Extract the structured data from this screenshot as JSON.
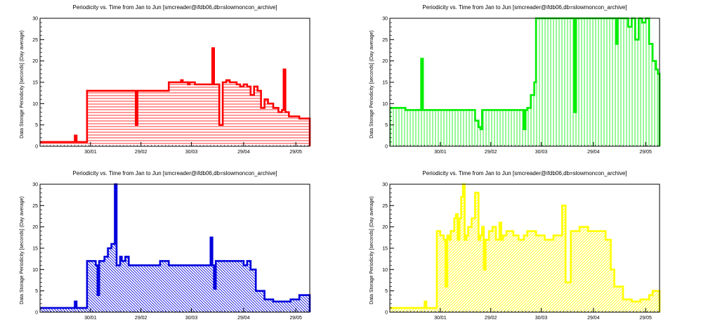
{
  "chart_data": [
    {
      "type": "area",
      "title": "Periodicity vs. Time from Jan to Jun [smcreader@ifdb06,db=slowmoncon_archive]",
      "ylabel": "Data Storage Periodicity [seconds] (Day average)",
      "xlabel": "",
      "x_tick_labels": [
        "30/01",
        "29/02",
        "30/03",
        "29/04",
        "29/05"
      ],
      "y_tick_labels": [
        "0",
        "5",
        "10",
        "15",
        "20",
        "25",
        "30"
      ],
      "xlim": [
        1,
        156
      ],
      "ylim": [
        0,
        30
      ],
      "color": "#ff0000",
      "fill_pattern": "horizontal-hatch",
      "grid": false,
      "series": [
        {
          "x": [
            1,
            10,
            20,
            21,
            22,
            26,
            27,
            28,
            30,
            40,
            50,
            55,
            56,
            57,
            60,
            65,
            70,
            75,
            80,
            82,
            83,
            84,
            86,
            87,
            90,
            95,
            98,
            100,
            101,
            102,
            104,
            106,
            108,
            109,
            110,
            112,
            114,
            116,
            118,
            120,
            122,
            124,
            126,
            128,
            130,
            132,
            135,
            138,
            139,
            140,
            141,
            142,
            143,
            144,
            146,
            148,
            150,
            152,
            153,
            154,
            155,
            156
          ],
          "y": [
            1,
            1,
            1,
            2.5,
            1,
            1,
            1,
            13,
            13,
            13,
            13,
            13,
            5,
            13,
            13,
            13,
            13,
            15,
            15,
            15.5,
            15,
            15,
            14.5,
            15,
            14.5,
            14.5,
            14.5,
            23,
            14.5,
            14.5,
            5,
            15,
            15.5,
            15.5,
            15,
            15,
            14.5,
            14,
            14.5,
            14,
            12,
            14,
            13,
            9,
            11,
            10,
            9,
            8,
            8,
            8.5,
            18,
            8,
            8,
            7,
            7,
            7,
            6.5,
            6.5,
            6.5,
            6.5,
            6.5,
            0
          ]
        }
      ]
    },
    {
      "type": "area",
      "title": "Periodicity vs. Time from Jan to Jun [smcreader@ifdb06,db=slowmoncon_archive]",
      "ylabel": "Data Storage Periodicity [seconds] (Day average)",
      "xlabel": "",
      "x_tick_labels": [
        "30/01",
        "29/02",
        "30/03",
        "29/04",
        "29/05"
      ],
      "y_tick_labels": [
        "0",
        "5",
        "10",
        "15",
        "20",
        "25",
        "30"
      ],
      "xlim": [
        1,
        156
      ],
      "ylim": [
        0,
        30
      ],
      "color": "#00ee00",
      "fill_pattern": "vertical-hatch",
      "grid": false,
      "series": [
        {
          "x": [
            1,
            5,
            10,
            15,
            18,
            19,
            20,
            25,
            30,
            35,
            40,
            45,
            50,
            52,
            53,
            54,
            55,
            60,
            65,
            70,
            75,
            78,
            79,
            80,
            82,
            84,
            85,
            90,
            95,
            100,
            106,
            107,
            108,
            110,
            115,
            120,
            125,
            130,
            131,
            132,
            135,
            138,
            140,
            142,
            144,
            146,
            148,
            150,
            152,
            154,
            155,
            156
          ],
          "y": [
            9,
            9,
            8.5,
            8.5,
            8.5,
            20.5,
            8.5,
            8.5,
            8.5,
            8.5,
            8.5,
            8.5,
            6,
            4.5,
            4,
            8.5,
            8.5,
            8.5,
            8.5,
            8.5,
            8.5,
            4,
            8.5,
            9,
            12,
            15,
            30,
            30,
            30,
            30,
            30,
            8,
            30,
            30,
            30,
            30,
            30,
            30,
            24,
            30,
            30,
            28,
            30,
            25,
            30,
            29,
            30,
            24,
            20,
            18,
            17,
            0
          ]
        }
      ]
    },
    {
      "type": "area",
      "title": "Periodicity vs. Time from Jan to Jun [smcreader@ifdb06,db=slowmoncon_archive]",
      "ylabel": "Data Storage Periodicity [seconds] (Day average)",
      "xlabel": "",
      "x_tick_labels": [
        "30/01",
        "29/02",
        "30/03",
        "29/04",
        "29/05"
      ],
      "y_tick_labels": [
        "0",
        "5",
        "10",
        "15",
        "20",
        "25",
        "30"
      ],
      "xlim": [
        1,
        156
      ],
      "ylim": [
        0,
        30
      ],
      "color": "#0000dd",
      "fill_pattern": "diagonal-hatch-down",
      "grid": false,
      "series": [
        {
          "x": [
            1,
            10,
            15,
            20,
            21,
            22,
            26,
            27,
            28,
            30,
            33,
            34,
            35,
            38,
            40,
            42,
            44,
            45,
            46,
            47,
            48,
            50,
            52,
            55,
            60,
            65,
            70,
            75,
            80,
            85,
            90,
            95,
            98,
            99,
            100,
            101,
            102,
            105,
            110,
            115,
            118,
            120,
            122,
            125,
            130,
            135,
            140,
            145,
            150,
            152,
            155,
            156
          ],
          "y": [
            1,
            1,
            1,
            1,
            2.5,
            1,
            1,
            1,
            12,
            12,
            11,
            4,
            12,
            13,
            15,
            16,
            30,
            11,
            11,
            13,
            12,
            13,
            11,
            11,
            11,
            11,
            12,
            11,
            11,
            11,
            11,
            11,
            11,
            17.5,
            11,
            5.5,
            12,
            12,
            12,
            12,
            11,
            12,
            10,
            5,
            3,
            2.5,
            2.5,
            3,
            4,
            4,
            4,
            0
          ]
        }
      ]
    },
    {
      "type": "area",
      "title": "Periodicity vs. Time from Jan to Jun [smcreader@ifdb06,db=slowmoncon_archive]",
      "ylabel": "Data Storage Periodicity [seconds] (Day average)",
      "xlabel": "",
      "x_tick_labels": [
        "30/01",
        "29/02",
        "30/03",
        "29/04",
        "29/05"
      ],
      "y_tick_labels": [
        "0",
        "5",
        "10",
        "15",
        "20",
        "25",
        "30"
      ],
      "xlim": [
        1,
        156
      ],
      "ylim": [
        0,
        30
      ],
      "color": "#ffff00",
      "fill_pattern": "diagonal-hatch-up",
      "grid": false,
      "series": [
        {
          "x": [
            1,
            10,
            15,
            20,
            21,
            22,
            26,
            27,
            28,
            30,
            32,
            33,
            34,
            35,
            36,
            38,
            39,
            40,
            41,
            42,
            43,
            44,
            45,
            46,
            48,
            50,
            52,
            53,
            54,
            55,
            56,
            58,
            60,
            62,
            64,
            65,
            66,
            68,
            70,
            72,
            75,
            78,
            80,
            85,
            90,
            95,
            100,
            102,
            105,
            108,
            110,
            115,
            120,
            125,
            128,
            130,
            135,
            140,
            145,
            150,
            152,
            155,
            156
          ],
          "y": [
            1,
            1,
            1,
            1,
            2.5,
            1,
            1,
            1,
            19,
            18,
            17,
            6,
            18,
            17,
            19,
            22,
            23,
            17,
            22,
            27,
            30,
            17,
            18,
            20,
            22,
            28,
            17,
            18,
            20,
            10,
            17,
            19,
            20,
            17,
            21,
            17,
            18,
            19,
            19,
            18,
            17,
            18,
            19,
            18,
            17,
            18,
            25,
            7,
            19,
            19,
            20,
            19,
            19,
            17,
            10,
            6,
            3,
            2.5,
            3,
            4,
            5,
            5,
            0
          ]
        }
      ]
    }
  ]
}
